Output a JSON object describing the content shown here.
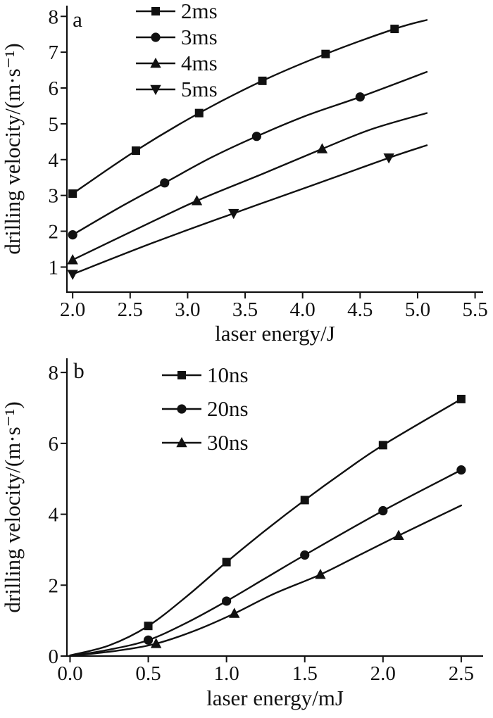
{
  "figure": {
    "background": "#ffffff",
    "ink_color": "#111111"
  },
  "chart_data": [
    {
      "type": "line",
      "panel_label": "a",
      "title": "",
      "xlabel": "laser energy/J",
      "ylabel": "drilling velocity/(m·s⁻¹)",
      "xlim": [
        1.95,
        5.57
      ],
      "ylim": [
        0.3,
        8.3
      ],
      "grid": false,
      "legend_position": "top-left-inside",
      "xtick_values": [
        2.0,
        2.5,
        3.0,
        3.5,
        4.0,
        4.5,
        5.0,
        5.5
      ],
      "xtick_labels": [
        "2.0",
        "2.5",
        "3.0",
        "3.5",
        "4.0",
        "4.5",
        "5.0",
        "5.5"
      ],
      "ytick_values": [
        1,
        2,
        3,
        4,
        5,
        6,
        7,
        8
      ],
      "ytick_labels": [
        "1",
        "2",
        "3",
        "4",
        "5",
        "6",
        "7",
        "8"
      ],
      "series": [
        {
          "name": "2ms",
          "marker": "square",
          "marker_points": [
            [
              2.0,
              3.05
            ],
            [
              2.55,
              4.25
            ],
            [
              3.1,
              5.3
            ],
            [
              3.65,
              6.2
            ],
            [
              4.2,
              6.95
            ],
            [
              4.8,
              7.65
            ]
          ],
          "line_points": [
            [
              2.0,
              3.05
            ],
            [
              2.55,
              4.25
            ],
            [
              3.1,
              5.3
            ],
            [
              3.65,
              6.2
            ],
            [
              4.2,
              6.95
            ],
            [
              4.8,
              7.65
            ],
            [
              5.08,
              7.9
            ]
          ]
        },
        {
          "name": "3ms",
          "marker": "circle",
          "marker_points": [
            [
              2.0,
              1.9
            ],
            [
              2.8,
              3.35
            ],
            [
              3.6,
              4.65
            ],
            [
              4.5,
              5.75
            ]
          ],
          "line_points": [
            [
              2.0,
              1.9
            ],
            [
              2.4,
              2.65
            ],
            [
              2.8,
              3.35
            ],
            [
              3.2,
              4.05
            ],
            [
              3.6,
              4.65
            ],
            [
              4.05,
              5.25
            ],
            [
              4.5,
              5.75
            ],
            [
              5.08,
              6.45
            ]
          ]
        },
        {
          "name": "4ms",
          "marker": "triangle-up",
          "marker_points": [
            [
              2.0,
              1.2
            ],
            [
              3.08,
              2.85
            ],
            [
              4.17,
              4.3
            ]
          ],
          "line_points": [
            [
              2.0,
              1.2
            ],
            [
              2.55,
              2.05
            ],
            [
              3.08,
              2.85
            ],
            [
              3.65,
              3.6
            ],
            [
              4.17,
              4.3
            ],
            [
              4.6,
              4.85
            ],
            [
              5.08,
              5.3
            ]
          ]
        },
        {
          "name": "5ms",
          "marker": "triangle-down",
          "marker_points": [
            [
              2.0,
              0.8
            ],
            [
              3.4,
              2.5
            ],
            [
              4.75,
              4.05
            ]
          ],
          "line_points": [
            [
              2.0,
              0.8
            ],
            [
              2.7,
              1.68
            ],
            [
              3.4,
              2.5
            ],
            [
              4.1,
              3.3
            ],
            [
              4.75,
              4.05
            ],
            [
              5.08,
              4.4
            ]
          ]
        }
      ]
    },
    {
      "type": "line",
      "panel_label": "b",
      "title": "",
      "xlabel": "laser energy/mJ",
      "ylabel": "drilling velocity/(m·s⁻¹)",
      "xlim": [
        -0.02,
        2.64
      ],
      "ylim": [
        0,
        8.4
      ],
      "grid": false,
      "legend_position": "top-left-inside",
      "xtick_values": [
        0.0,
        0.5,
        1.0,
        1.5,
        2.0,
        2.5
      ],
      "xtick_labels": [
        "0.0",
        "0.5",
        "1.0",
        "1.5",
        "2.0",
        "2.5"
      ],
      "ytick_values": [
        0,
        2,
        4,
        6,
        8
      ],
      "ytick_labels": [
        "0",
        "2",
        "4",
        "6",
        "8"
      ],
      "series": [
        {
          "name": "10ns",
          "marker": "square",
          "marker_points": [
            [
              0.5,
              0.85
            ],
            [
              1.0,
              2.65
            ],
            [
              1.5,
              4.4
            ],
            [
              2.0,
              5.95
            ],
            [
              2.5,
              7.25
            ]
          ],
          "line_points": [
            [
              0.0,
              0.02
            ],
            [
              0.25,
              0.3
            ],
            [
              0.5,
              0.85
            ],
            [
              0.75,
              1.7
            ],
            [
              1.0,
              2.65
            ],
            [
              1.25,
              3.55
            ],
            [
              1.5,
              4.4
            ],
            [
              1.75,
              5.2
            ],
            [
              2.0,
              5.95
            ],
            [
              2.5,
              7.25
            ]
          ]
        },
        {
          "name": "20ns",
          "marker": "circle",
          "marker_points": [
            [
              0.5,
              0.45
            ],
            [
              1.0,
              1.55
            ],
            [
              1.5,
              2.85
            ],
            [
              2.0,
              4.1
            ],
            [
              2.5,
              5.25
            ]
          ],
          "line_points": [
            [
              0.0,
              0.0
            ],
            [
              0.25,
              0.18
            ],
            [
              0.5,
              0.45
            ],
            [
              0.75,
              0.95
            ],
            [
              1.0,
              1.55
            ],
            [
              1.25,
              2.2
            ],
            [
              1.5,
              2.85
            ],
            [
              2.0,
              4.1
            ],
            [
              2.5,
              5.25
            ]
          ]
        },
        {
          "name": "30ns",
          "marker": "triangle-up",
          "marker_points": [
            [
              0.55,
              0.35
            ],
            [
              1.05,
              1.2
            ],
            [
              1.6,
              2.3
            ],
            [
              2.1,
              3.4
            ]
          ],
          "line_points": [
            [
              0.0,
              0.0
            ],
            [
              0.3,
              0.15
            ],
            [
              0.55,
              0.35
            ],
            [
              0.8,
              0.72
            ],
            [
              1.05,
              1.2
            ],
            [
              1.3,
              1.75
            ],
            [
              1.6,
              2.3
            ],
            [
              1.85,
              2.85
            ],
            [
              2.1,
              3.4
            ],
            [
              2.5,
              4.25
            ]
          ]
        }
      ]
    }
  ]
}
